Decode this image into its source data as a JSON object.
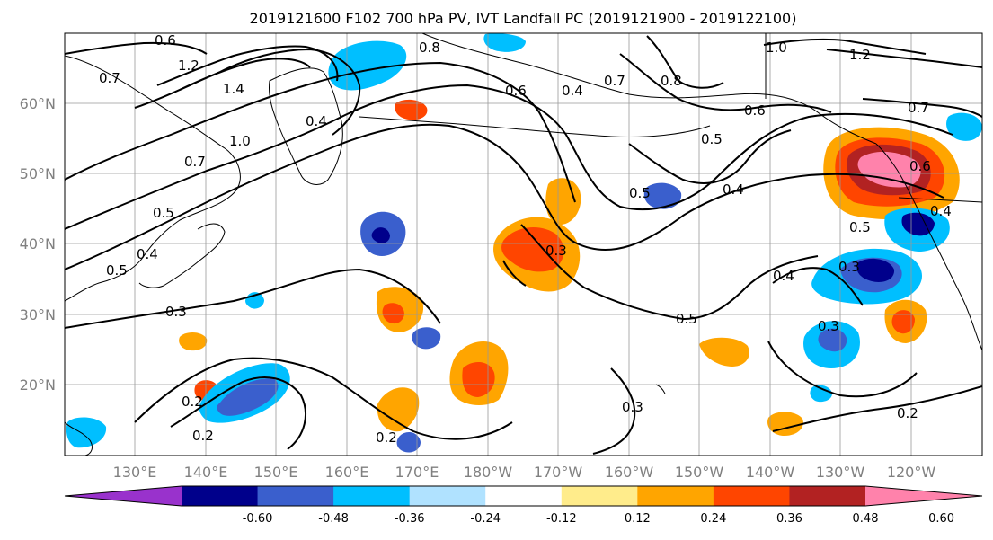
{
  "title": "2019121600 F102 700 hPa PV, IVT Landfall PC (2019121900 - 2019122100)",
  "map": {
    "lat_ticks": [
      "60°N",
      "50°N",
      "40°N",
      "30°N",
      "20°N"
    ],
    "lon_ticks": [
      "130°E",
      "140°E",
      "150°E",
      "160°E",
      "170°E",
      "180°W",
      "170°W",
      "160°W",
      "150°W",
      "140°W",
      "130°W",
      "120°W"
    ],
    "gridlines": true
  },
  "contour_labels": [
    "0.6",
    "1.2",
    "1.4",
    "0.7",
    "1.0",
    "0.7",
    "0.5",
    "0.4",
    "0.5",
    "0.3",
    "0.8",
    "0.6",
    "0.4",
    "0.7",
    "0.8",
    "1.0",
    "1.2",
    "0.7",
    "0.6",
    "0.5",
    "0.4",
    "0.5",
    "0.6",
    "0.5",
    "0.3",
    "0.4",
    "0.3",
    "0.5",
    "0.3",
    "0.2",
    "0.2",
    "0.2",
    "0.3",
    "0.2",
    "0.4",
    "0.4"
  ],
  "colorbar": {
    "levels": [
      "-0.60",
      "-0.48",
      "-0.36",
      "-0.24",
      "-0.12",
      "0.12",
      "0.24",
      "0.36",
      "0.48",
      "0.60"
    ],
    "colors": [
      "#9932cc",
      "#00008b",
      "#3a5fcd",
      "#00bfff",
      "#b0e2ff",
      "#ffffff",
      "#ffec8b",
      "#ffa500",
      "#ff4500",
      "#b22222",
      "#ff82ab"
    ]
  }
}
